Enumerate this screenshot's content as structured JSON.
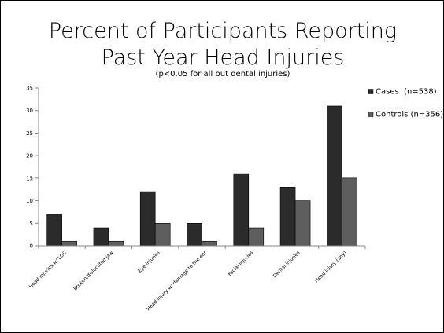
{
  "chart_data": {
    "type": "bar",
    "title_line1": "Percent of Participants Reporting",
    "title_line2": "Past Year Head Injuries",
    "subtitle": "(p<0.05 for all but dental injuries)",
    "xlabel": "",
    "ylabel": "",
    "ylim": [
      0,
      35
    ],
    "yticks": [
      "0",
      "5",
      "10",
      "15",
      "20",
      "25",
      "30",
      "35"
    ],
    "grid": false,
    "legend_position": "right",
    "categories": [
      "Head injuries w/ LOC",
      "Broken/dislocated jaw",
      "Eye injuries",
      "Head injury w/ damage to the ear",
      "Facial injuries",
      "Dental injuries",
      "Head injury (any)"
    ],
    "series": [
      {
        "name": "Cases  (n=538)",
        "color": "#2b2b2b",
        "values": [
          7,
          4,
          12,
          5,
          16,
          13,
          31
        ]
      },
      {
        "name": "Controls (n=356)",
        "color": "#5e5e5e",
        "values": [
          1,
          1,
          5,
          1,
          4,
          10,
          15
        ]
      }
    ]
  }
}
